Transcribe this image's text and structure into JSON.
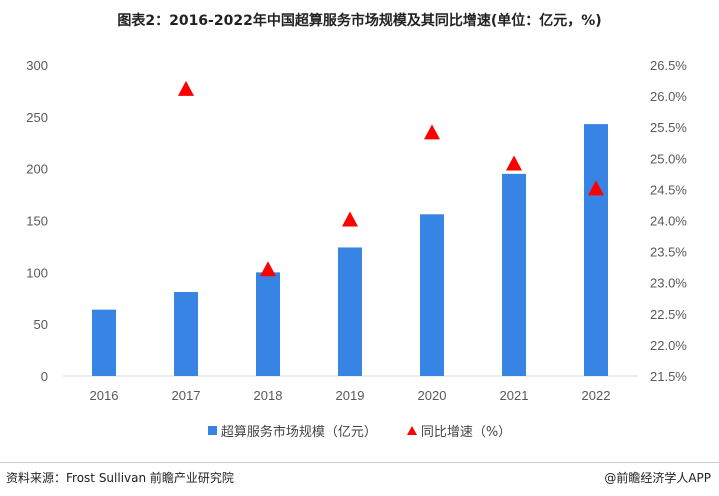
{
  "chart_data": {
    "type": "bar",
    "title": "图表2：2016-2022年中国超算服务市场规模及其同比增速(单位：亿元，%)",
    "categories": [
      "2016",
      "2017",
      "2018",
      "2019",
      "2020",
      "2021",
      "2022"
    ],
    "series": [
      {
        "name": "超算服务市场规模（亿元）",
        "type": "bar",
        "axis": "left",
        "color": "#3884e4",
        "values": [
          64,
          81,
          100,
          124,
          156,
          195,
          243
        ]
      },
      {
        "name": "同比增速（%）",
        "type": "scatter",
        "marker": "triangle",
        "axis": "right",
        "color": "#ff0000",
        "values": [
          null,
          26.1,
          23.2,
          24.0,
          25.4,
          24.9,
          24.5
        ]
      }
    ],
    "left_axis": {
      "ylim": [
        0,
        300
      ],
      "ticks": [
        "0",
        "50",
        "100",
        "150",
        "200",
        "250",
        "300"
      ]
    },
    "right_axis": {
      "ylim": [
        21.5,
        26.5
      ],
      "ticks": [
        "21.5%",
        "22.0%",
        "22.5%",
        "23.0%",
        "23.5%",
        "24.0%",
        "24.5%",
        "25.0%",
        "25.5%",
        "26.0%",
        "26.5%"
      ]
    },
    "grid": false,
    "legend": "bottom"
  },
  "footer": {
    "source": "资料来源：Frost Sullivan 前瞻产业研究院",
    "brand": "@前瞻经济学人APP"
  }
}
